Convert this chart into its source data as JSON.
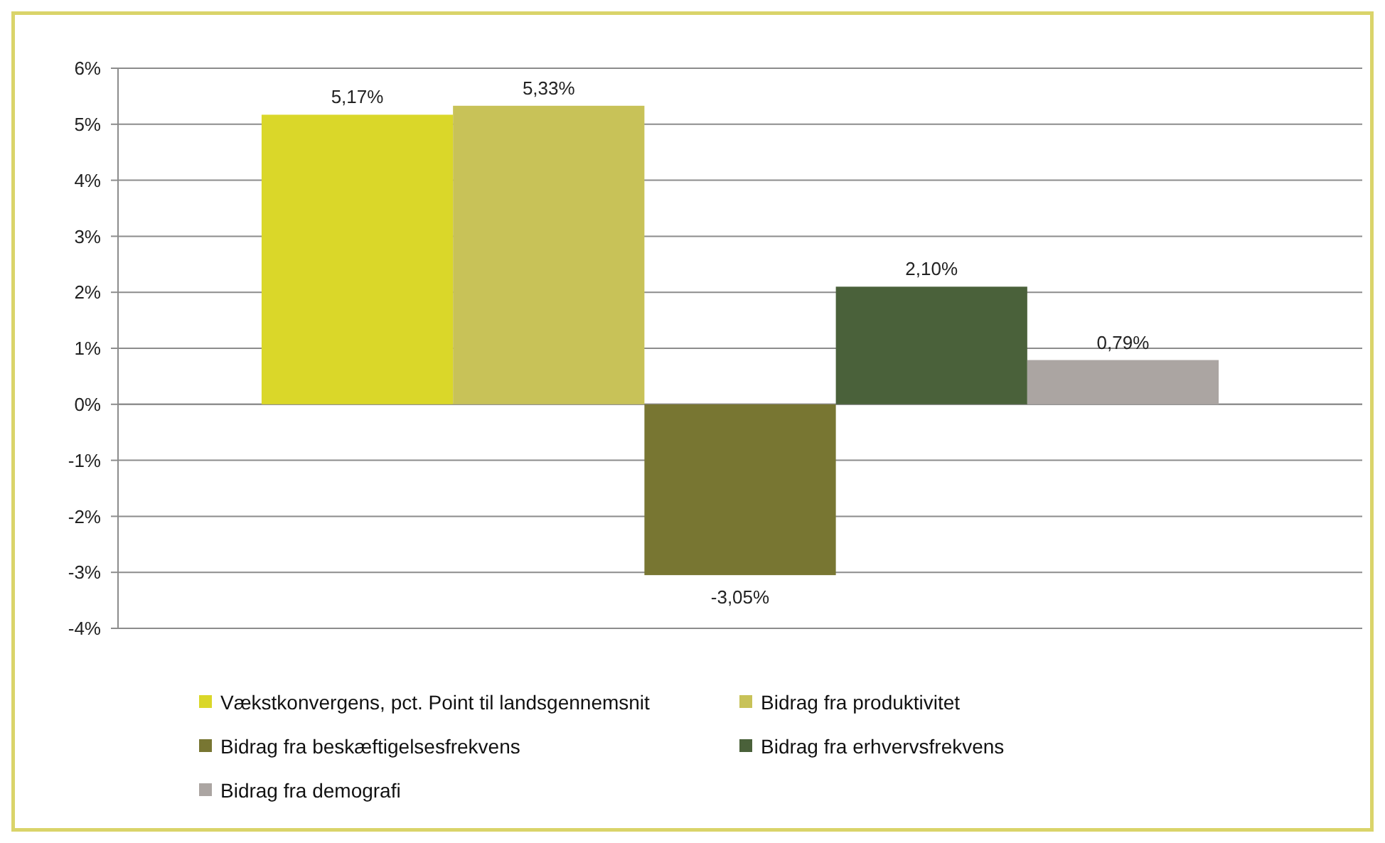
{
  "chart_data": {
    "type": "bar",
    "categories": [
      null
    ],
    "series": [
      {
        "name": "Vækstkonvergens, pct. Point til landsgennemsnit",
        "color": "#dad729",
        "values": [
          5.17
        ],
        "value_labels": [
          "5,17%"
        ]
      },
      {
        "name": "Bidrag fra produktivitet",
        "color": "#c8c258",
        "values": [
          5.33
        ],
        "value_labels": [
          "5,33%"
        ]
      },
      {
        "name": "Bidrag fra beskæftigelsesfrekvens",
        "color": "#787632",
        "values": [
          -3.05
        ],
        "value_labels": [
          "-3,05%"
        ]
      },
      {
        "name": "Bidrag fra erhvervsfrekvens",
        "color": "#4a613a",
        "values": [
          2.1
        ],
        "value_labels": [
          "2,10%"
        ]
      },
      {
        "name": "Bidrag fra demografi",
        "color": "#aba5a2",
        "values": [
          0.79
        ],
        "value_labels": [
          "0,79%"
        ]
      }
    ],
    "ylim": [
      -4,
      6
    ],
    "yticks": [
      {
        "value": -4,
        "label": "-4%"
      },
      {
        "value": -3,
        "label": "-3%"
      },
      {
        "value": -2,
        "label": "-2%"
      },
      {
        "value": -1,
        "label": "-1%"
      },
      {
        "value": 0,
        "label": "0%"
      },
      {
        "value": 1,
        "label": "1%"
      },
      {
        "value": 2,
        "label": "2%"
      },
      {
        "value": 3,
        "label": "3%"
      },
      {
        "value": 4,
        "label": "4%"
      },
      {
        "value": 5,
        "label": "5%"
      },
      {
        "value": 6,
        "label": "6%"
      }
    ],
    "grid": "y",
    "legend": "bottom"
  }
}
